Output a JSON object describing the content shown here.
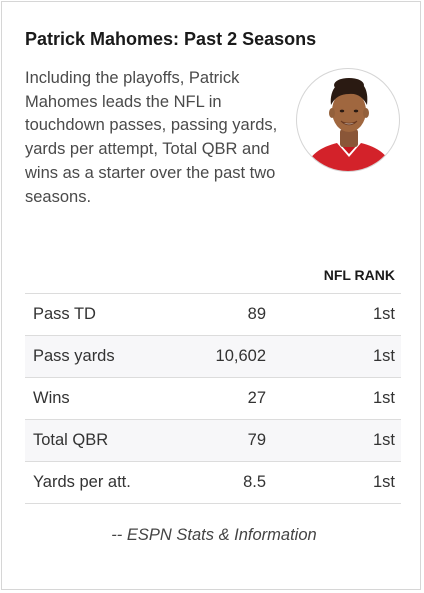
{
  "card": {
    "title": "Patrick Mahomes: Past 2 Seasons",
    "description": "Including the playoffs, Patrick Mahomes leads the NFL in touchdown passes, passing yards, yards per attempt, Total QBR and wins as a starter over the past two seasons.",
    "photo_icon": "player-headshot",
    "table": {
      "rank_header": "NFL RANK",
      "rows": [
        {
          "label": "Pass TD",
          "value": "89",
          "rank": "1st"
        },
        {
          "label": "Pass yards",
          "value": "10,602",
          "rank": "1st"
        },
        {
          "label": "Wins",
          "value": "27",
          "rank": "1st"
        },
        {
          "label": "Total QBR",
          "value": "79",
          "rank": "1st"
        },
        {
          "label": "Yards per att.",
          "value": "8.5",
          "rank": "1st"
        }
      ]
    },
    "credit": "-- ESPN Stats & Information"
  },
  "colors": {
    "border": "#d6d6d6",
    "row_alt": "#f7f7f9",
    "jersey_red": "#d3222a"
  }
}
